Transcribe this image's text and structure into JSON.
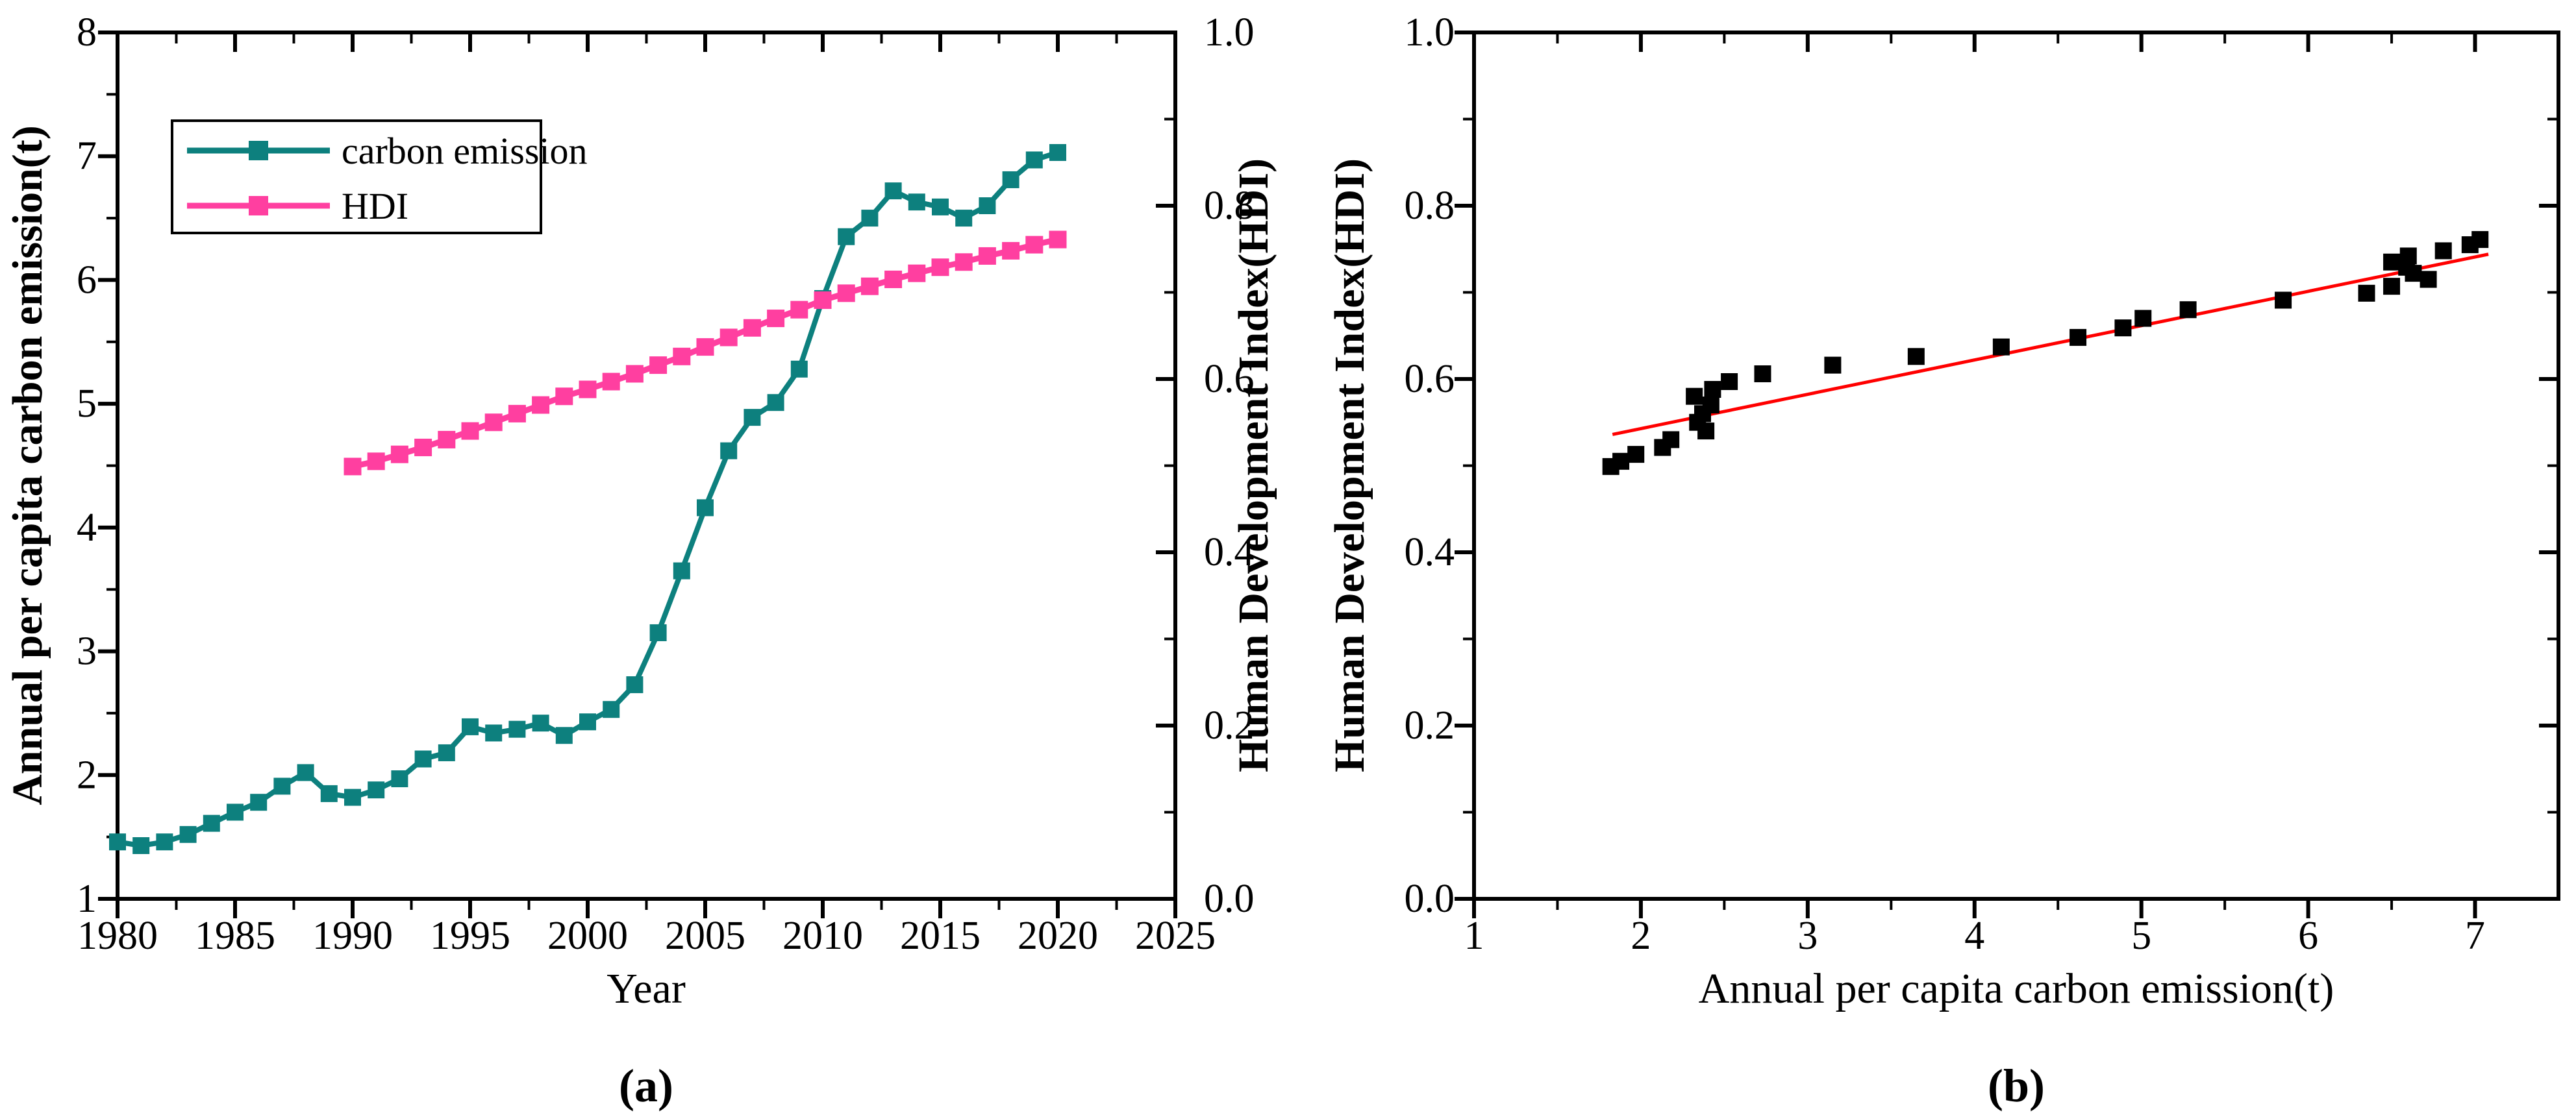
{
  "panels": {
    "a": {
      "caption": "(a)",
      "xlabel": "Year",
      "ylabel_left": "Annual per capita carbon emission(t)",
      "ylabel_right": "Human Development Index(HDI)",
      "legend": {
        "items": [
          {
            "label": "carbon emission",
            "color_key": "carbon_emission"
          },
          {
            "label": "HDI",
            "color_key": "hdi"
          }
        ]
      }
    },
    "b": {
      "caption": "(b)",
      "xlabel": "Annual per capita carbon emission(t)",
      "ylabel": "Human Development Index(HDI)"
    }
  },
  "colors": {
    "carbon_emission": "#0D807E",
    "hdi": "#FF3FA0",
    "scatter": "#000000",
    "fit_line": "#FF0000",
    "axis": "#000000"
  },
  "chart_data": [
    {
      "type": "line",
      "panel": "a",
      "xlabel": "Year",
      "ylabel_left": "Annual per capita carbon emission(t)",
      "ylabel_right": "Human Development Index(HDI)",
      "xlim": [
        1980,
        2025
      ],
      "ylim_left": [
        1,
        8
      ],
      "ylim_right": [
        0.0,
        1.0
      ],
      "x_ticks": [
        1980,
        1985,
        1990,
        1995,
        2000,
        2005,
        2010,
        2015,
        2020,
        2025
      ],
      "y_ticks_left": [
        1,
        2,
        3,
        4,
        5,
        6,
        7,
        8
      ],
      "y_ticks_right": [
        "0.0",
        "0.2",
        "0.4",
        "0.6",
        "0.8",
        "1.0"
      ],
      "legend_position": "upper-left",
      "grid": false,
      "series": [
        {
          "name": "carbon emission",
          "axis": "left",
          "color_key": "carbon_emission",
          "marker": "square",
          "start_year": 1980,
          "x": [
            1980,
            1981,
            1982,
            1983,
            1984,
            1985,
            1986,
            1987,
            1988,
            1989,
            1990,
            1991,
            1992,
            1993,
            1994,
            1995,
            1996,
            1997,
            1998,
            1999,
            2000,
            2001,
            2002,
            2003,
            2004,
            2005,
            2006,
            2007,
            2008,
            2009,
            2010,
            2011,
            2012,
            2013,
            2014,
            2015,
            2016,
            2017,
            2018,
            2019,
            2020
          ],
          "values": [
            1.46,
            1.43,
            1.46,
            1.52,
            1.61,
            1.7,
            1.78,
            1.91,
            2.02,
            1.85,
            1.82,
            1.88,
            1.97,
            2.13,
            2.18,
            2.39,
            2.34,
            2.37,
            2.42,
            2.32,
            2.43,
            2.53,
            2.73,
            3.15,
            3.65,
            4.16,
            4.62,
            4.89,
            5.01,
            5.28,
            5.85,
            6.35,
            6.5,
            6.72,
            6.63,
            6.59,
            6.5,
            6.6,
            6.81,
            6.97,
            7.03
          ]
        },
        {
          "name": "HDI",
          "axis": "right",
          "color_key": "hdi",
          "marker": "square",
          "start_year": 1990,
          "x": [
            1990,
            1991,
            1992,
            1993,
            1994,
            1995,
            1996,
            1997,
            1998,
            1999,
            2000,
            2001,
            2002,
            2003,
            2004,
            2005,
            2006,
            2007,
            2008,
            2009,
            2010,
            2011,
            2012,
            2013,
            2014,
            2015,
            2016,
            2017,
            2018,
            2019,
            2020
          ],
          "values": [
            0.499,
            0.505,
            0.513,
            0.521,
            0.53,
            0.54,
            0.55,
            0.56,
            0.57,
            0.58,
            0.588,
            0.597,
            0.606,
            0.616,
            0.626,
            0.637,
            0.648,
            0.659,
            0.67,
            0.68,
            0.691,
            0.699,
            0.707,
            0.715,
            0.722,
            0.729,
            0.735,
            0.742,
            0.748,
            0.755,
            0.761
          ]
        }
      ]
    },
    {
      "type": "scatter",
      "panel": "b",
      "xlabel": "Annual per capita carbon emission(t)",
      "ylabel": "Human Development Index(HDI)",
      "xlim": [
        1,
        7.5
      ],
      "ylim": [
        0.0,
        1.0
      ],
      "x_ticks": [
        1,
        2,
        3,
        4,
        5,
        6,
        7
      ],
      "y_ticks": [
        "0.0",
        "0.2",
        "0.4",
        "0.6",
        "0.8",
        "1.0"
      ],
      "marker": "square",
      "color_key": "scatter",
      "points": [
        [
          1.82,
          0.499
        ],
        [
          1.88,
          0.505
        ],
        [
          1.97,
          0.513
        ],
        [
          2.13,
          0.521
        ],
        [
          2.18,
          0.53
        ],
        [
          2.39,
          0.54
        ],
        [
          2.34,
          0.55
        ],
        [
          2.37,
          0.56
        ],
        [
          2.42,
          0.57
        ],
        [
          2.32,
          0.58
        ],
        [
          2.43,
          0.588
        ],
        [
          2.53,
          0.597
        ],
        [
          2.73,
          0.606
        ],
        [
          3.15,
          0.616
        ],
        [
          3.65,
          0.626
        ],
        [
          4.16,
          0.637
        ],
        [
          4.62,
          0.648
        ],
        [
          4.89,
          0.659
        ],
        [
          5.01,
          0.67
        ],
        [
          5.28,
          0.68
        ],
        [
          5.85,
          0.691
        ],
        [
          6.35,
          0.699
        ],
        [
          6.5,
          0.707
        ],
        [
          6.72,
          0.715
        ],
        [
          6.63,
          0.722
        ],
        [
          6.59,
          0.729
        ],
        [
          6.5,
          0.735
        ],
        [
          6.6,
          0.742
        ],
        [
          6.81,
          0.748
        ],
        [
          6.97,
          0.755
        ],
        [
          7.03,
          0.761
        ]
      ],
      "fit_line": {
        "x1": 1.83,
        "y1": 0.536,
        "x2": 7.08,
        "y2": 0.744,
        "color_key": "fit_line"
      }
    }
  ]
}
